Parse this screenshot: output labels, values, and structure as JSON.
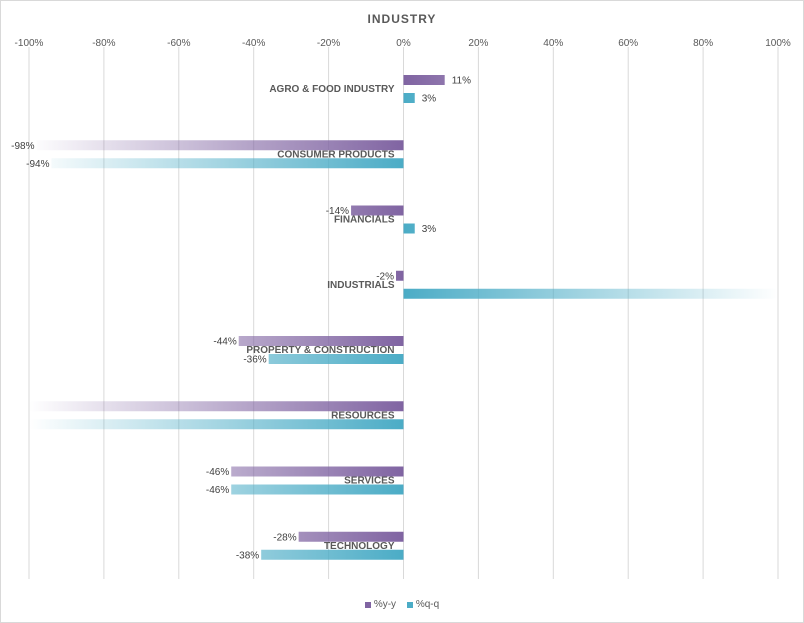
{
  "chart_data": {
    "type": "bar",
    "orientation": "horizontal",
    "title": "INDUSTRY",
    "xlim": [
      -100,
      100
    ],
    "x_ticks": [
      "-100%",
      "-80%",
      "-60%",
      "-40%",
      "-20%",
      "0%",
      "20%",
      "40%",
      "60%",
      "80%",
      "100%"
    ],
    "grid": true,
    "legend_position": "bottom",
    "categories": [
      "AGRO & FOOD INDUSTRY",
      "CONSUMER PRODUCTS",
      "FINANCIALS",
      "INDUSTRIALS",
      "PROPERTY & CONSTRUCTION",
      "RESOURCES",
      "SERVICES",
      "TECHNOLOGY"
    ],
    "series": [
      {
        "name": "%y-y",
        "color": "#8064a2",
        "values": [
          11,
          -98,
          -14,
          -2,
          -44,
          -100,
          -46,
          -28
        ],
        "labels": [
          "11%",
          "-98%",
          "-14%",
          "-2%",
          "-44%",
          "",
          "-46%",
          "-28%"
        ]
      },
      {
        "name": "%q-q",
        "color": "#4bacc6",
        "values": [
          3,
          -94,
          3,
          100,
          -36,
          -100,
          -46,
          -38
        ],
        "labels": [
          "3%",
          "-94%",
          "3%",
          "",
          "-36%",
          "",
          "-46%",
          "-38%"
        ]
      }
    ]
  }
}
